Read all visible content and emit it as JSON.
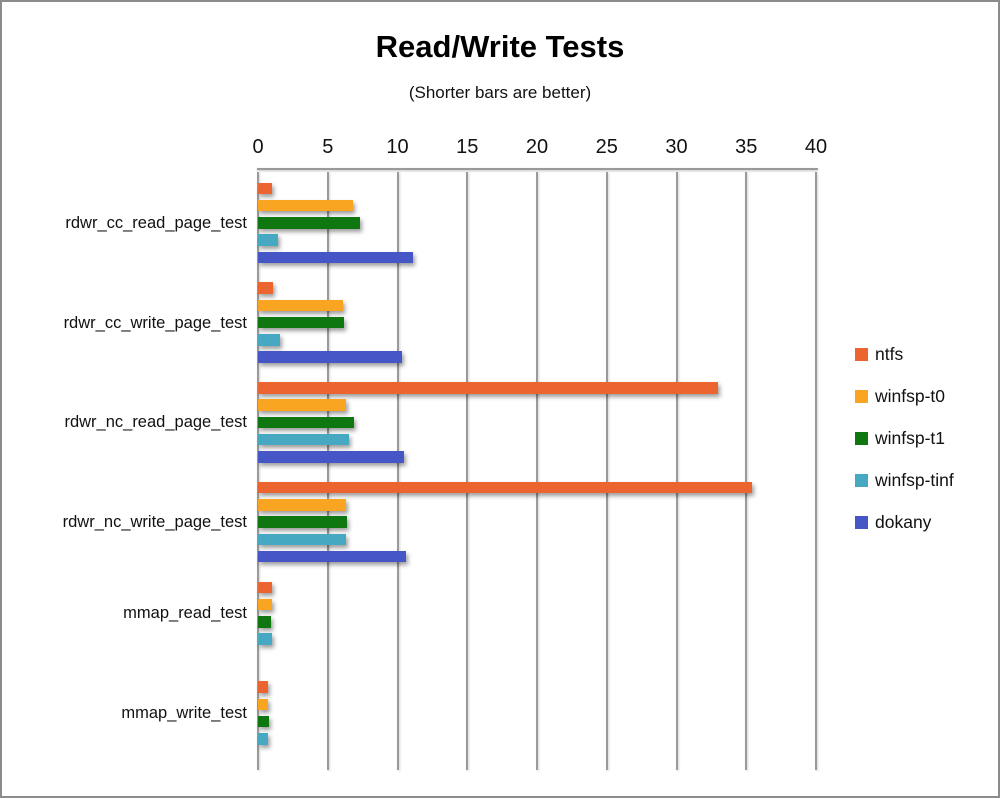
{
  "chart_data": {
    "type": "bar",
    "orientation": "horizontal",
    "title": "Read/Write Tests",
    "subtitle": "(Shorter bars are better)",
    "xlabel": "",
    "ylabel": "",
    "axis": {
      "min": 0,
      "max": 40,
      "tick_step": 5,
      "ticks": [
        0,
        5,
        10,
        15,
        20,
        25,
        30,
        35,
        40
      ]
    },
    "grid": true,
    "legend_position": "right",
    "categories": [
      "rdwr_cc_read_page_test",
      "rdwr_cc_write_page_test",
      "rdwr_nc_read_page_test",
      "rdwr_nc_write_page_test",
      "mmap_read_test",
      "mmap_write_test"
    ],
    "series": [
      {
        "name": "ntfs",
        "color": "#EC6430",
        "values": [
          1.0,
          1.1,
          33.0,
          35.4,
          1.0,
          0.7
        ]
      },
      {
        "name": "winfsp-t0",
        "color": "#F9A521",
        "values": [
          6.8,
          6.1,
          6.3,
          6.3,
          1.0,
          0.7
        ]
      },
      {
        "name": "winfsp-t1",
        "color": "#0F770F",
        "values": [
          7.3,
          6.2,
          6.9,
          6.4,
          0.9,
          0.8
        ]
      },
      {
        "name": "winfsp-tinf",
        "color": "#47A8C2",
        "values": [
          1.4,
          1.6,
          6.5,
          6.3,
          1.0,
          0.7
        ]
      },
      {
        "name": "dokany",
        "color": "#4656C6",
        "values": [
          11.1,
          10.3,
          10.5,
          10.6,
          null,
          null
        ]
      }
    ],
    "style": {
      "gridline_color": "#9a9a9a",
      "text_color": "#111111"
    }
  }
}
